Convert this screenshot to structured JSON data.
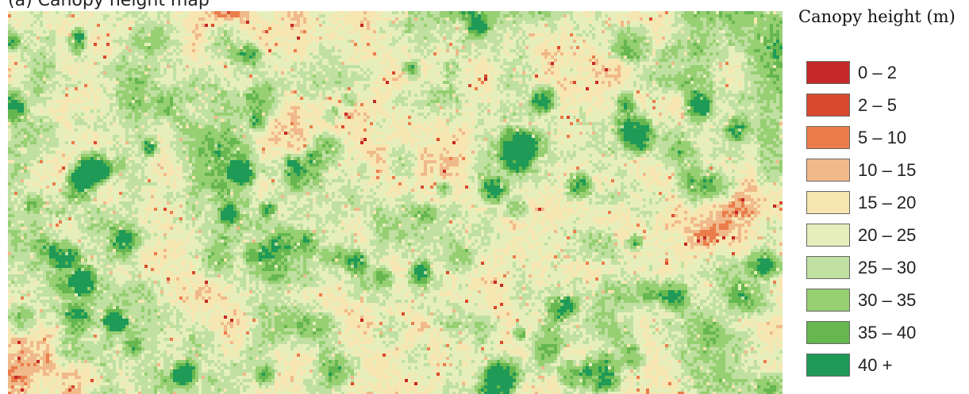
{
  "map": {
    "title": "(a) Canopy height map",
    "kind": "raster canopy height map"
  },
  "legend": {
    "title": "Canopy height (m)",
    "items": [
      {
        "label": "0 – 2",
        "color": "#c62828"
      },
      {
        "label": "2 – 5",
        "color": "#d84a2d"
      },
      {
        "label": "5 – 10",
        "color": "#ea7d4b"
      },
      {
        "label": "10 – 15",
        "color": "#f0b98a"
      },
      {
        "label": "15 – 20",
        "color": "#f7e6b1"
      },
      {
        "label": "20 – 25",
        "color": "#e6efbc"
      },
      {
        "label": "25 – 30",
        "color": "#bfe0a1"
      },
      {
        "label": "30 – 35",
        "color": "#97cf73"
      },
      {
        "label": "35 – 40",
        "color": "#66b74f"
      },
      {
        "label": "40 +",
        "color": "#1f9a57"
      }
    ]
  }
}
